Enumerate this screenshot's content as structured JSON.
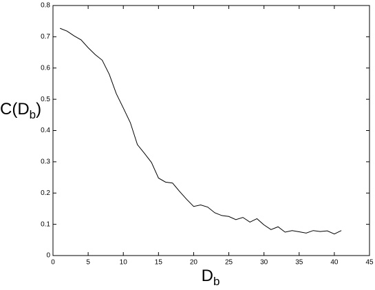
{
  "chart_data": {
    "type": "line",
    "xlabel_parts": [
      "D",
      "b"
    ],
    "ylabel_parts": [
      "C(D",
      "b",
      ")"
    ],
    "x": [
      1,
      2,
      3,
      4,
      5,
      6,
      7,
      8,
      9,
      10,
      11,
      12,
      13,
      14,
      15,
      16,
      17,
      18,
      19,
      20,
      21,
      22,
      23,
      24,
      25,
      26,
      27,
      28,
      29,
      30,
      31,
      32,
      33,
      34,
      35,
      36,
      37,
      38,
      39,
      40,
      41
    ],
    "series": [
      {
        "color": "#000000",
        "values": [
          0.727,
          0.718,
          0.703,
          0.69,
          0.665,
          0.643,
          0.625,
          0.58,
          0.518,
          0.472,
          0.425,
          0.355,
          0.327,
          0.298,
          0.248,
          0.235,
          0.232,
          0.205,
          0.18,
          0.157,
          0.162,
          0.155,
          0.137,
          0.128,
          0.125,
          0.115,
          0.122,
          0.107,
          0.118,
          0.098,
          0.083,
          0.092,
          0.075,
          0.08,
          0.076,
          0.072,
          0.08,
          0.077,
          0.079,
          0.069,
          0.08
        ]
      }
    ],
    "xlim": [
      0,
      45
    ],
    "xticks": [
      0,
      5,
      10,
      15,
      20,
      25,
      30,
      35,
      40,
      45
    ],
    "ylim": [
      0,
      0.8
    ],
    "yticks": [
      0,
      0.1,
      0.2,
      0.3,
      0.4,
      0.5,
      0.6,
      0.7,
      0.8
    ],
    "grid": false
  }
}
